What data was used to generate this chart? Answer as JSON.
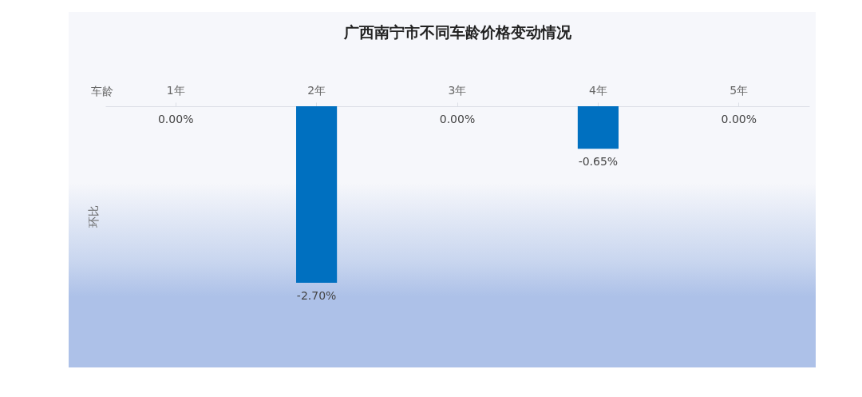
{
  "chart_data": {
    "type": "bar",
    "title": "广西南宁市不同车龄价格变动情况",
    "xlabel": "车龄",
    "ylabel": "环比",
    "categories": [
      "1年",
      "2年",
      "3年",
      "4年",
      "5年"
    ],
    "values": [
      0,
      -2.7,
      0,
      -0.65,
      0
    ],
    "value_labels": [
      "0.00%",
      "-2.70%",
      "0.00%",
      "-0.65%",
      "0.00%"
    ],
    "color": "#0070c0"
  }
}
